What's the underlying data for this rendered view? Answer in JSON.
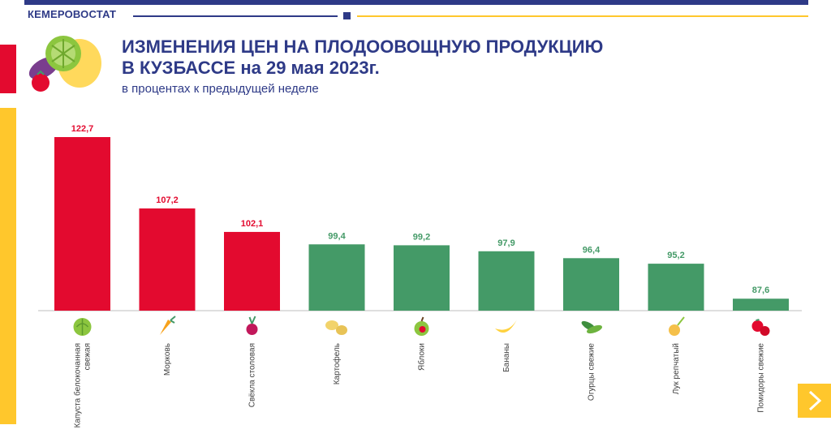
{
  "header": {
    "brand": "КЕМЕРОВОСТАТ",
    "title_line1": "ИЗМЕНЕНИЯ ЦЕН НА ПЛОДООВОЩНУЮ ПРОДУКЦИЮ",
    "title_line2": "В КУЗБАССЕ на 29 мая 2023г.",
    "subtitle": "в процентах к предыдущей неделе"
  },
  "colors": {
    "brand_blue": "#2E3A87",
    "accent_yellow": "#FFC72C",
    "increase_red": "#E30A2F",
    "decrease_green": "#449A67"
  },
  "chart_data": {
    "type": "bar",
    "categories": [
      "Капуста белокочанная свежая",
      "Морковь",
      "Свёкла столовая",
      "Картофель",
      "Яблоки",
      "Бананы",
      "Огурцы свежие",
      "Лук репчатый",
      "Помидоры свежие"
    ],
    "icons": [
      "cabbage-icon",
      "carrot-icon",
      "beet-icon",
      "potato-icon",
      "apple-icon",
      "banana-icon",
      "cucumber-icon",
      "onion-icon",
      "tomato-icon"
    ],
    "values": [
      122.7,
      107.2,
      102.1,
      99.4,
      99.2,
      97.9,
      96.4,
      95.2,
      87.6
    ],
    "value_labels": [
      "122,7",
      "107,2",
      "102,1",
      "99,4",
      "99,2",
      "97,9",
      "96,4",
      "95,2",
      "87,6"
    ],
    "ylim": [
      85,
      122.7
    ],
    "threshold": 100,
    "legend": "none",
    "grid": false
  },
  "nav": {
    "next_icon": "chevron-right-icon"
  }
}
